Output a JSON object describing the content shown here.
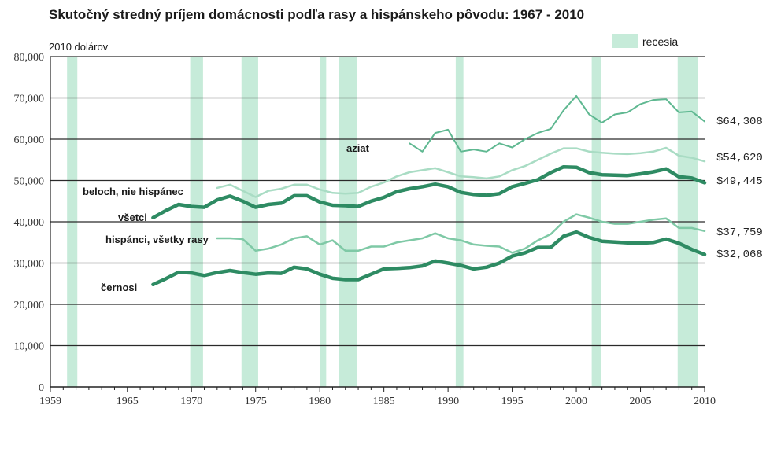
{
  "chart_data": {
    "type": "line",
    "title": "Skutočný stredný príjem domácnosti podľa rasy a hispánskeho pôvodu: 1967 - 2010",
    "ylabel": "2010 dolárov",
    "xlabel": "",
    "xlim": [
      1959,
      2010
    ],
    "ylim": [
      0,
      80000
    ],
    "grid": true,
    "x_ticks": [
      1959,
      1965,
      1970,
      1975,
      1980,
      1985,
      1990,
      1995,
      2000,
      2005,
      2010
    ],
    "x_tick_labels": [
      "1959",
      "1965",
      "1970",
      "1975",
      "1980",
      "1985",
      "1990",
      "1995",
      "2000",
      "2005",
      "2010"
    ],
    "y_ticks": [
      0,
      10000,
      20000,
      30000,
      40000,
      50000,
      60000,
      70000,
      80000
    ],
    "y_tick_labels": [
      "0",
      "10,000",
      "20,000",
      "30,000",
      "40,000",
      "50,000",
      "60,000",
      "70,000",
      "80,000"
    ],
    "legend": {
      "label": "recesia",
      "color": "#c6ebd9",
      "placement": "top-right"
    },
    "recessions": [
      [
        1960.3,
        1961.1
      ],
      [
        1969.9,
        1970.9
      ],
      [
        1973.9,
        1975.2
      ],
      [
        1980.0,
        1980.5
      ],
      [
        1981.5,
        1982.9
      ],
      [
        1990.6,
        1991.2
      ],
      [
        2001.2,
        2001.9
      ],
      [
        2007.9,
        2009.5
      ]
    ],
    "series": [
      {
        "name": "aziat",
        "color": "#5fb891",
        "width": 2,
        "x": [
          1987,
          1988,
          1989,
          1990,
          1991,
          1992,
          1993,
          1994,
          1995,
          1996,
          1997,
          1998,
          1999,
          2000,
          2001,
          2002,
          2003,
          2004,
          2005,
          2006,
          2007,
          2008,
          2009,
          2010
        ],
        "y": [
          59000,
          57000,
          61500,
          62300,
          57000,
          57500,
          57000,
          59000,
          58000,
          60000,
          61500,
          62500,
          67000,
          70500,
          66000,
          64000,
          66000,
          66500,
          68500,
          69500,
          69700,
          66500,
          66700,
          64308
        ],
        "end_label": "$64,308",
        "label_text": "aziat"
      },
      {
        "name": "beloch, nie hispánec",
        "color": "#a9dcc4",
        "width": 2.5,
        "x": [
          1972,
          1973,
          1974,
          1975,
          1976,
          1977,
          1978,
          1979,
          1980,
          1981,
          1982,
          1983,
          1984,
          1985,
          1986,
          1987,
          1988,
          1989,
          1990,
          1991,
          1992,
          1993,
          1994,
          1995,
          1996,
          1997,
          1998,
          1999,
          2000,
          2001,
          2002,
          2003,
          2004,
          2005,
          2006,
          2007,
          2008,
          2009,
          2010
        ],
        "y": [
          48200,
          49000,
          47500,
          46000,
          47500,
          48000,
          49000,
          49000,
          47800,
          47000,
          46800,
          47000,
          48500,
          49500,
          51000,
          52000,
          52500,
          53000,
          52000,
          51000,
          50800,
          50500,
          51000,
          52500,
          53500,
          55000,
          56500,
          57800,
          57800,
          57000,
          56700,
          56500,
          56400,
          56600,
          57000,
          57900,
          56000,
          55500,
          54620
        ],
        "end_label": "$54,620",
        "label_text": "beloch, nie hispánec"
      },
      {
        "name": "všetci",
        "color": "#2e8b63",
        "width": 4.5,
        "x": [
          1967,
          1968,
          1969,
          1970,
          1971,
          1972,
          1973,
          1974,
          1975,
          1976,
          1977,
          1978,
          1979,
          1980,
          1981,
          1982,
          1983,
          1984,
          1985,
          1986,
          1987,
          1988,
          1989,
          1990,
          1991,
          1992,
          1993,
          1994,
          1995,
          1996,
          1997,
          1998,
          1999,
          2000,
          2001,
          2002,
          2003,
          2004,
          2005,
          2006,
          2007,
          2008,
          2009,
          2010
        ],
        "y": [
          41000,
          42700,
          44200,
          43700,
          43500,
          45300,
          46200,
          45000,
          43500,
          44200,
          44500,
          46300,
          46300,
          44800,
          44000,
          43900,
          43700,
          45000,
          45900,
          47300,
          48000,
          48500,
          49100,
          48500,
          47100,
          46600,
          46400,
          46800,
          48500,
          49300,
          50200,
          51900,
          53300,
          53200,
          51900,
          51400,
          51300,
          51200,
          51600,
          52100,
          52800,
          50900,
          50600,
          49445
        ],
        "end_label": "$49,445",
        "label_text": "všetci"
      },
      {
        "name": "hispánci, všetky rasy",
        "color": "#7fc9a6",
        "width": 2.5,
        "x": [
          1972,
          1973,
          1974,
          1975,
          1976,
          1977,
          1978,
          1979,
          1980,
          1981,
          1982,
          1983,
          1984,
          1985,
          1986,
          1987,
          1988,
          1989,
          1990,
          1991,
          1992,
          1993,
          1994,
          1995,
          1996,
          1997,
          1998,
          1999,
          2000,
          2001,
          2002,
          2003,
          2004,
          2005,
          2006,
          2007,
          2008,
          2009,
          2010
        ],
        "y": [
          36000,
          36000,
          35800,
          33000,
          33500,
          34500,
          36000,
          36500,
          34500,
          35500,
          33000,
          33000,
          34000,
          34000,
          35000,
          35500,
          36000,
          37200,
          36000,
          35500,
          34500,
          34200,
          34000,
          32500,
          33500,
          35500,
          37000,
          40000,
          41800,
          41000,
          40000,
          39500,
          39500,
          40000,
          40500,
          40800,
          38500,
          38500,
          37759
        ],
        "end_label": "$37,759",
        "label_text": "hispánci, všetky rasy"
      },
      {
        "name": "černosi",
        "color": "#2e8b63",
        "width": 4.5,
        "x": [
          1967,
          1968,
          1969,
          1970,
          1971,
          1972,
          1973,
          1974,
          1975,
          1976,
          1977,
          1978,
          1979,
          1980,
          1981,
          1982,
          1983,
          1984,
          1985,
          1986,
          1987,
          1988,
          1989,
          1990,
          1991,
          1992,
          1993,
          1994,
          1995,
          1996,
          1997,
          1998,
          1999,
          2000,
          2001,
          2002,
          2003,
          2004,
          2005,
          2006,
          2007,
          2008,
          2009,
          2010
        ],
        "y": [
          24800,
          26200,
          27800,
          27600,
          27000,
          27700,
          28200,
          27700,
          27300,
          27600,
          27500,
          29000,
          28600,
          27300,
          26300,
          26000,
          26000,
          27300,
          28600,
          28700,
          28900,
          29300,
          30500,
          30000,
          29400,
          28600,
          29000,
          30000,
          31700,
          32500,
          33800,
          33800,
          36500,
          37500,
          36200,
          35300,
          35100,
          34900,
          34800,
          35000,
          35800,
          34800,
          33300,
          32068
        ],
        "end_label": "$32,068",
        "label_text": "černosi"
      }
    ]
  }
}
